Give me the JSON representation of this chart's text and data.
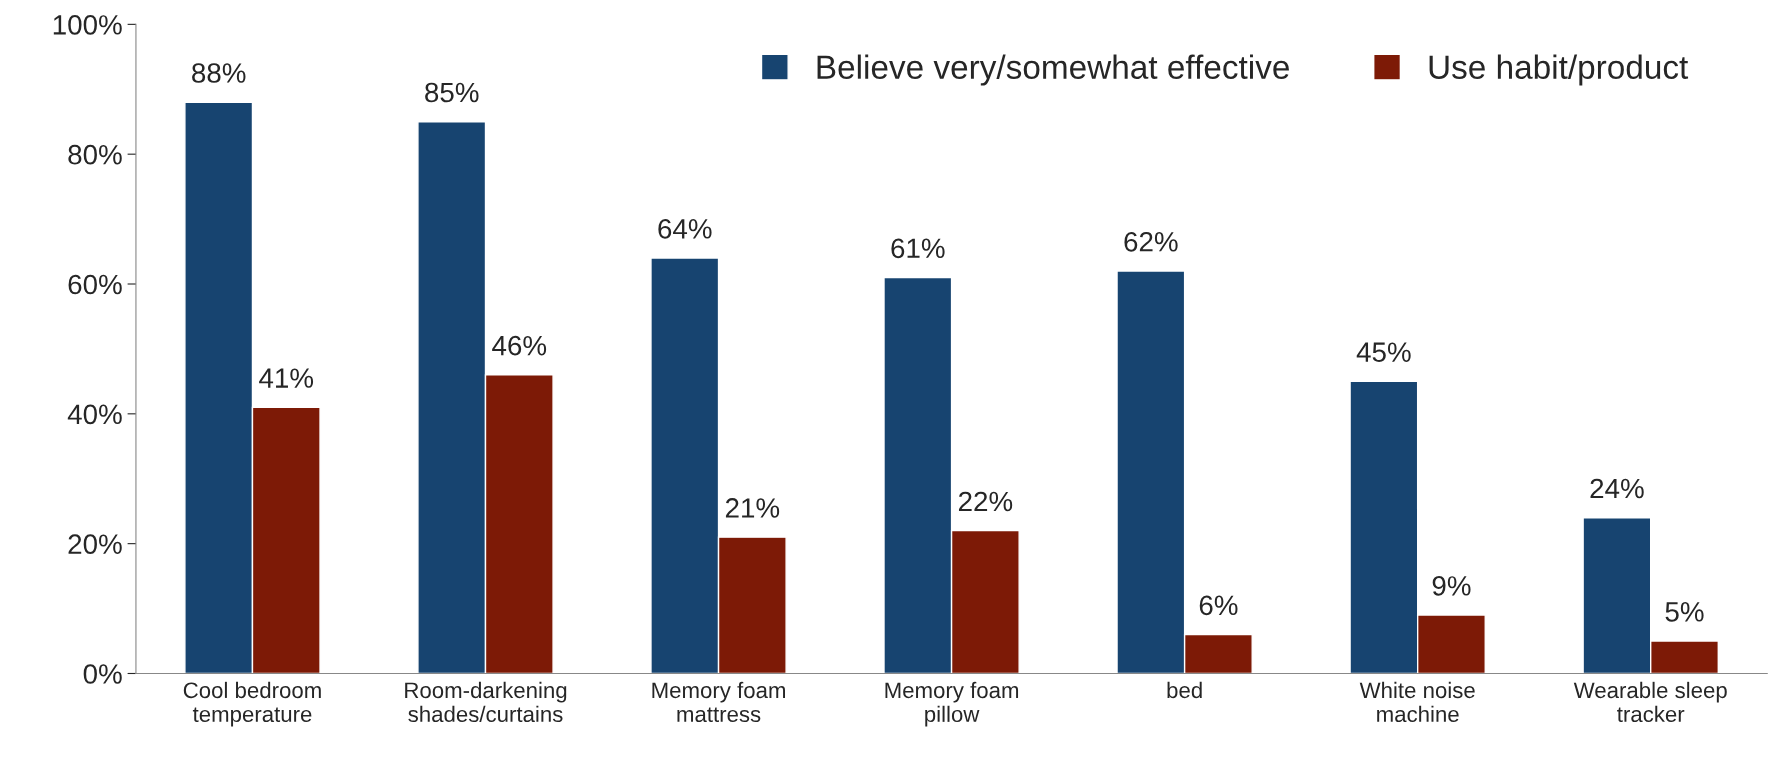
{
  "chart_data": {
    "type": "bar",
    "categories": [
      "Cool bedroom\ntemperature",
      "Room-darkening\nshades/curtains",
      "Memory foam\nmattress",
      "Memory foam\npillow",
      "bed",
      "White noise\nmachine",
      "Wearable sleep\ntracker"
    ],
    "series": [
      {
        "name": "Believe very/somewhat effective",
        "color": "#174470",
        "values": [
          88,
          85,
          64,
          61,
          62,
          45,
          24
        ],
        "value_labels": [
          "88%",
          "85%",
          "64%",
          "61%",
          "62%",
          "45%",
          "24%"
        ]
      },
      {
        "name": "Use habit/product",
        "color": "#7d1a06",
        "values": [
          41,
          46,
          21,
          22,
          6,
          9,
          5
        ],
        "value_labels": [
          "41%",
          "46%",
          "21%",
          "22%",
          "6%",
          "9%",
          "5%"
        ]
      }
    ],
    "ylim": [
      0,
      100
    ],
    "yticks": [
      {
        "value": 0,
        "label": "0%"
      },
      {
        "value": 20,
        "label": "20%"
      },
      {
        "value": 40,
        "label": "40%"
      },
      {
        "value": 60,
        "label": "60%"
      },
      {
        "value": 80,
        "label": "80%"
      },
      {
        "value": 100,
        "label": "100%"
      }
    ],
    "grid": false,
    "legend": "top right"
  }
}
